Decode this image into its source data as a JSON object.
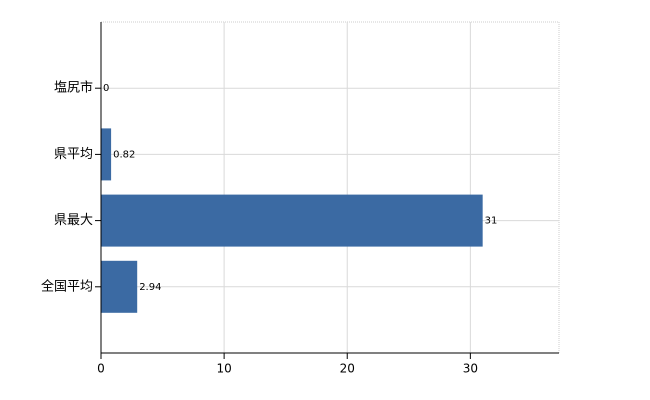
{
  "chart_data": {
    "type": "bar",
    "orientation": "horizontal",
    "categories": [
      "塩尻市",
      "県平均",
      "県最大",
      "全国平均"
    ],
    "values": [
      0,
      0.82,
      31,
      2.94
    ],
    "color": "#3b6aa3",
    "xlim": [
      0,
      37.2
    ],
    "xticks": [
      0,
      10,
      20,
      30
    ],
    "grid": true
  }
}
